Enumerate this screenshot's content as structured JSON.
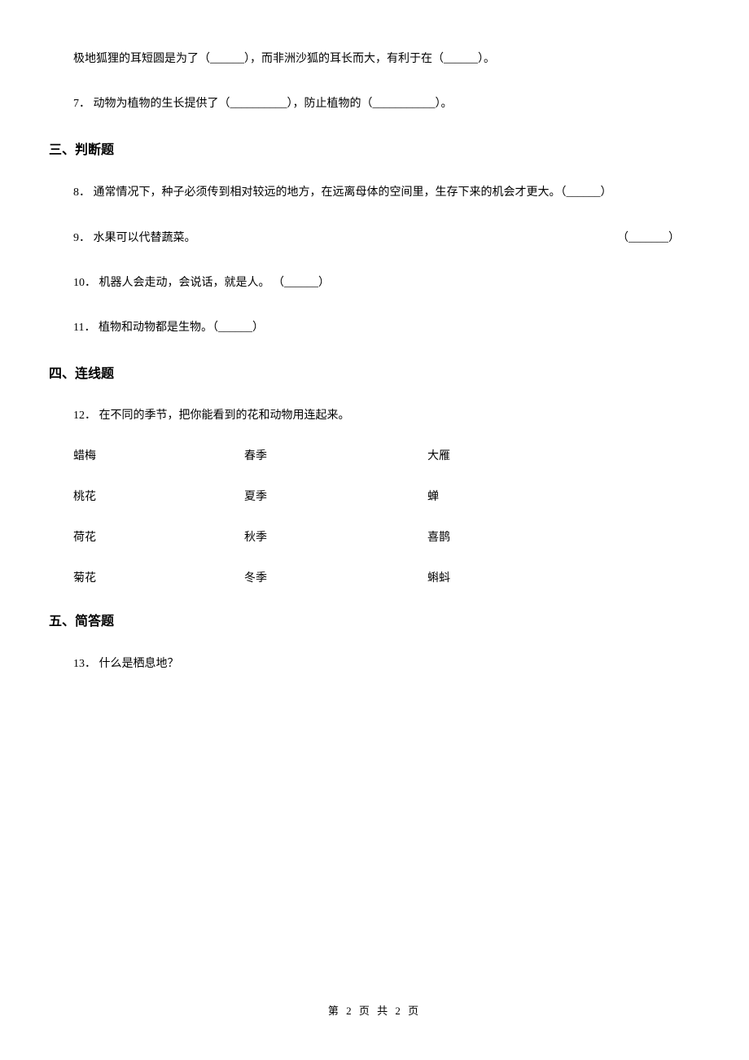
{
  "q6": {
    "text_a": "极地狐狸的耳短圆是为了（",
    "text_b": "），而非洲沙狐的耳长而大，有利于在（",
    "text_c": "）。"
  },
  "q7": {
    "prefix": "7．",
    "text_a": "动物为植物的生长提供了（",
    "text_b": "），防止植物的（",
    "text_c": "）。"
  },
  "section3": "三、判断题",
  "q8": {
    "prefix": "8．",
    "text": "通常情况下，种子必须传到相对较远的地方，在远离母体的空间里，生存下来的机会才更大。（",
    "text_end": "）"
  },
  "q9": {
    "prefix": "9．",
    "text": "水果可以代替蔬菜。",
    "paren_open": "（",
    "paren_close": "）"
  },
  "q10": {
    "prefix": "10．",
    "text": "机器人会走动，会说话，就是人。  （",
    "text_end": "）"
  },
  "q11": {
    "prefix": "11．",
    "text": "植物和动物都是生物。（",
    "text_end": "）"
  },
  "section4": "四、连线题",
  "q12": {
    "prefix": "12．",
    "intro": "在不同的季节，把你能看到的花和动物用连起来。",
    "rows": [
      {
        "c1": "蜡梅",
        "c2": "春季",
        "c3": "大雁"
      },
      {
        "c1": "桃花",
        "c2": "夏季",
        "c3": "蝉"
      },
      {
        "c1": "荷花",
        "c2": "秋季",
        "c3": "喜鹊"
      },
      {
        "c1": "菊花",
        "c2": "冬季",
        "c3": "蝌蚪"
      }
    ]
  },
  "section5": "五、简答题",
  "q13": {
    "prefix": "13．",
    "text": "什么是栖息地？"
  },
  "footer": "第 2 页 共 2 页",
  "blanks": {
    "short": "______",
    "mid": "_______",
    "long": "__________",
    "xlong": "___________"
  }
}
